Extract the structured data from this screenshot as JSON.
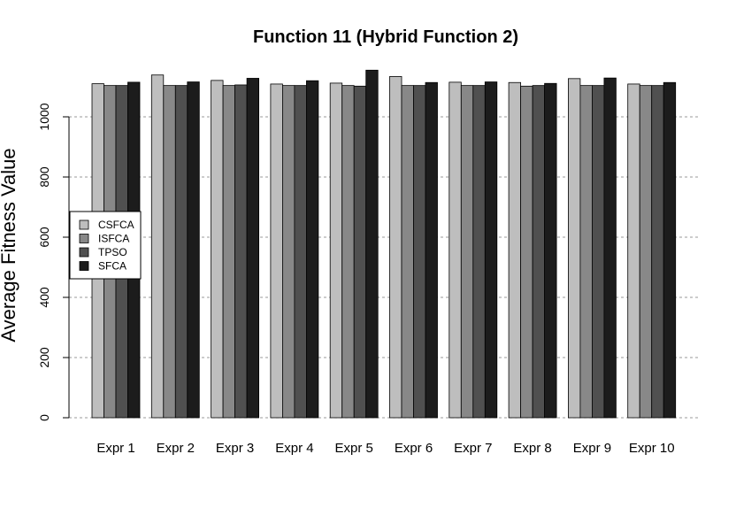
{
  "chart_data": {
    "type": "bar",
    "title": "Function 11 (Hybrid Function 2)",
    "xlabel": "",
    "ylabel": "Average Fitness Value",
    "ylim": [
      0,
      1000
    ],
    "yticks": [
      0,
      200,
      400,
      600,
      800,
      1000
    ],
    "grid": "horizontal dashed",
    "legend_position": "left",
    "categories": [
      "Expr 1",
      "Expr 2",
      "Expr 3",
      "Expr 4",
      "Expr 5",
      "Expr 6",
      "Expr 7",
      "Expr 8",
      "Expr 9",
      "Expr 10"
    ],
    "series": [
      {
        "name": "CSFCA",
        "color": "#bebebe",
        "values": [
          1110,
          1139,
          1121,
          1109,
          1112,
          1134,
          1115,
          1114,
          1127,
          1109
        ]
      },
      {
        "name": "ISFCA",
        "color": "#888888",
        "values": [
          1104,
          1104,
          1104,
          1104,
          1104,
          1104,
          1104,
          1102,
          1104,
          1104
        ]
      },
      {
        "name": "TPSO",
        "color": "#505050",
        "values": [
          1104,
          1104,
          1106,
          1104,
          1102,
          1104,
          1104,
          1104,
          1104,
          1104
        ]
      },
      {
        "name": "SFCA",
        "color": "#1c1c1c",
        "values": [
          1115,
          1116,
          1128,
          1120,
          1155,
          1114,
          1116,
          1111,
          1129,
          1114
        ]
      }
    ]
  }
}
